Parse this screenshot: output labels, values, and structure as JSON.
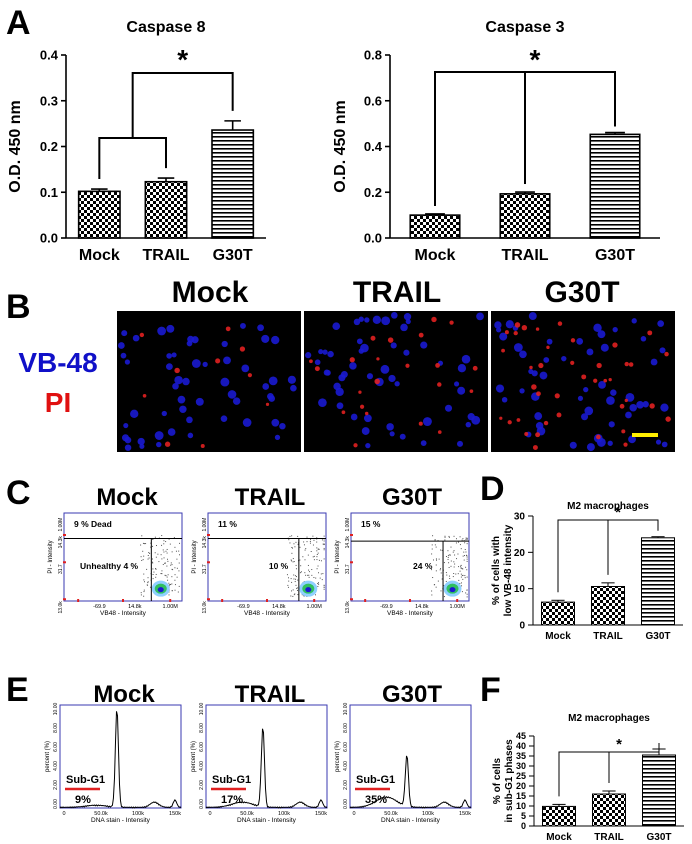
{
  "panel_letters": [
    "A",
    "B",
    "C",
    "D",
    "E",
    "F"
  ],
  "colors": {
    "vb48": "#1010c8",
    "pi": "#e01010",
    "axis": "#000000",
    "flow_frame": "#3a3ab0",
    "marker_line": "#e02020",
    "scale_bar": "#ffee00"
  },
  "panel_b": {
    "columns": [
      "Mock",
      "TRAIL",
      "G30T"
    ],
    "stain_vb48": "VB-48",
    "stain_pi": "PI"
  },
  "panel_c": {
    "titles": [
      "Mock",
      "TRAIL",
      "G30T"
    ],
    "plots": [
      {
        "dead_label": "9 % Dead",
        "unhealthy_label": "Unhealthy 4 %"
      },
      {
        "dead_label": "11 %",
        "unhealthy_label": "10 %"
      },
      {
        "dead_label": "15 %",
        "unhealthy_label": "24 %"
      }
    ],
    "y_label": "PI - Intensity",
    "x_label": "VB48 - Intensity",
    "y_ticks": [
      "1.00M",
      "14.3k",
      "31.7",
      "13.0k"
    ],
    "x_ticks": [
      "-69.9",
      "14.8k",
      "1.00M"
    ]
  },
  "panel_e": {
    "titles": [
      "Mock",
      "TRAIL",
      "G30T"
    ],
    "gate_label": "Sub-G1",
    "percents": [
      "9%",
      "17%",
      "35%"
    ],
    "y_label": "percent (%)",
    "x_label": "DNA stain - Intensity",
    "y_ticks": [
      "10.00",
      "8.00",
      "6.00",
      "4.00",
      "2.00",
      "0.00"
    ],
    "x_ticks": [
      "0",
      "50.0k",
      "100k",
      "150k"
    ]
  },
  "chart_data": [
    {
      "panel": "A",
      "type": "bar",
      "title": "Caspase 8",
      "categories": [
        "Mock",
        "TRAIL",
        "G30T"
      ],
      "values": [
        0.102,
        0.123,
        0.236
      ],
      "errors": [
        0.005,
        0.008,
        0.02
      ],
      "patterns": [
        "checker",
        "checker",
        "hstripe"
      ],
      "ylabel": "O.D. 450 nm",
      "xlabel": "",
      "ylim": [
        0,
        0.4
      ],
      "yticks": [
        "0.0",
        "0.1",
        "0.2",
        "0.3",
        "0.4"
      ],
      "significance": "*"
    },
    {
      "panel": "A",
      "type": "bar",
      "title": "Caspase 3",
      "categories": [
        "Mock",
        "TRAIL",
        "G30T"
      ],
      "values": [
        0.1,
        0.193,
        0.453
      ],
      "errors": [
        0.005,
        0.008,
        0.008
      ],
      "patterns": [
        "checker",
        "checker",
        "hstripe"
      ],
      "ylabel": "O.D. 450 nm",
      "xlabel": "",
      "ylim": [
        0,
        0.8
      ],
      "yticks": [
        "0.0",
        "0.2",
        "0.4",
        "0.6",
        "0.8"
      ],
      "significance": "*"
    },
    {
      "panel": "D",
      "type": "bar",
      "title": "M2 macrophages",
      "categories": [
        "Mock",
        "TRAIL",
        "G30T"
      ],
      "values": [
        6.3,
        10.6,
        24.0
      ],
      "errors": [
        0.5,
        1.0,
        0.3
      ],
      "patterns": [
        "checker",
        "checker",
        "hstripe"
      ],
      "ylabel": "% of cells with low VB-48 intensity",
      "ylabel_lines": [
        "% of cells with",
        "low VB-48 intensity"
      ],
      "xlabel": "",
      "ylim": [
        0,
        30
      ],
      "yticks": [
        "0",
        "10",
        "20",
        "30"
      ],
      "significance": "*"
    },
    {
      "panel": "F",
      "type": "bar",
      "title": "M2 macrophages",
      "categories": [
        "Mock",
        "TRAIL",
        "G30T"
      ],
      "values": [
        9.8,
        16.0,
        35.5
      ],
      "errors": [
        1.0,
        1.5,
        3.0
      ],
      "patterns": [
        "checker",
        "checker",
        "hstripe"
      ],
      "ylabel": "% of cells in sub-G1 phases",
      "ylabel_lines": [
        "% of cells",
        "in sub-G1 phases"
      ],
      "xlabel": "",
      "ylim": [
        0,
        45
      ],
      "yticks": [
        "0",
        "5",
        "10",
        "15",
        "20",
        "25",
        "30",
        "35",
        "40",
        "45"
      ],
      "significance": "*"
    }
  ]
}
